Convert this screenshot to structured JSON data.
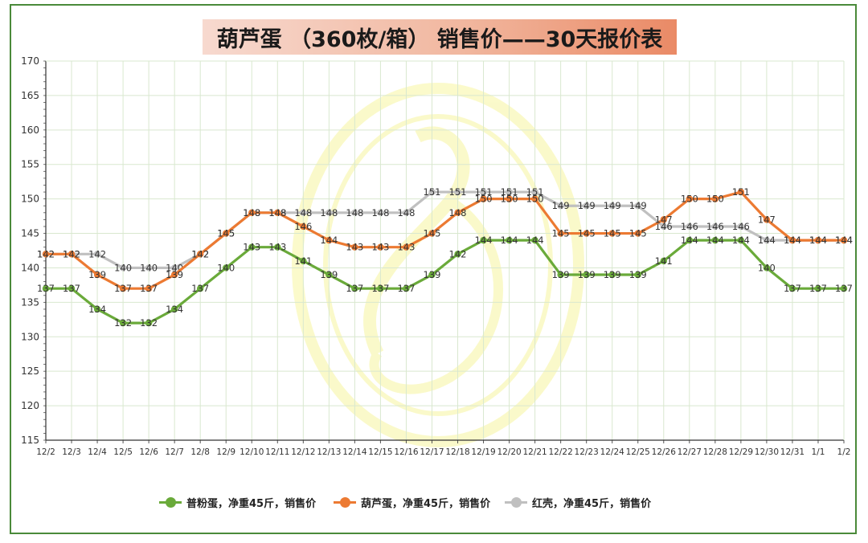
{
  "title": "葫芦蛋 （360枚/箱） 销售价——30天报价表",
  "colors": {
    "series1": "#6aaa3a",
    "series2": "#ec7a32",
    "series3": "#c0c0c0",
    "frame": "#4a8a3a",
    "grid": "#d9e8cf"
  },
  "chart_data": {
    "type": "line",
    "title": "葫芦蛋 （360枚/箱） 销售价——30天报价表",
    "xlabel": "",
    "ylabel": "",
    "ylim": [
      115,
      170
    ],
    "yticks": [
      115,
      120,
      125,
      130,
      135,
      140,
      145,
      150,
      155,
      160,
      165,
      170
    ],
    "grid": true,
    "legend_position": "bottom",
    "categories": [
      "12/2",
      "12/3",
      "12/4",
      "12/5",
      "12/6",
      "12/7",
      "12/8",
      "12/9",
      "12/10",
      "12/11",
      "12/12",
      "12/13",
      "12/14",
      "12/15",
      "12/16",
      "12/17",
      "12/18",
      "12/19",
      "12/20",
      "12/21",
      "12/22",
      "12/23",
      "12/24",
      "12/25",
      "12/26",
      "12/27",
      "12/28",
      "12/29",
      "12/30",
      "12/31",
      "1/1",
      "1/2"
    ],
    "series": [
      {
        "name": "普粉蛋，净重45斤，销售价",
        "color": "#6aaa3a",
        "values": [
          137,
          137,
          134,
          132,
          132,
          134,
          137,
          140,
          143,
          143,
          141,
          139,
          137,
          137,
          137,
          139,
          142,
          144,
          144,
          144,
          139,
          139,
          139,
          139,
          141,
          144,
          144,
          144,
          140,
          137,
          137,
          137
        ]
      },
      {
        "name": "葫芦蛋，净重45斤，销售价",
        "color": "#ec7a32",
        "values": [
          142,
          142,
          139,
          137,
          137,
          139,
          142,
          145,
          148,
          148,
          146,
          144,
          143,
          143,
          143,
          145,
          148,
          150,
          150,
          150,
          145,
          145,
          145,
          145,
          147,
          150,
          150,
          151,
          147,
          144,
          144,
          144
        ]
      },
      {
        "name": "红壳，净重45斤，销售价",
        "color": "#c0c0c0",
        "values": [
          142,
          142,
          142,
          140,
          140,
          140,
          142,
          145,
          148,
          148,
          148,
          148,
          148,
          148,
          148,
          151,
          151,
          151,
          151,
          151,
          149,
          149,
          149,
          149,
          146,
          146,
          146,
          146,
          144,
          144,
          144,
          144
        ]
      }
    ]
  }
}
